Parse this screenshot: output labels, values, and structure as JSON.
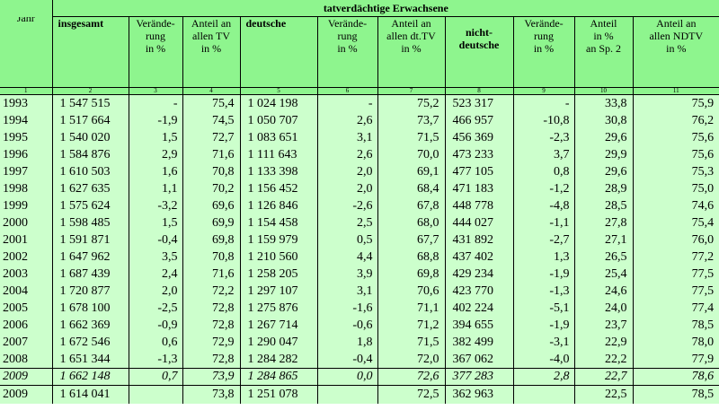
{
  "title": "tatverdächtige Erwachsene",
  "headers": {
    "jahr": "Jahr",
    "insgesamt": "insgesamt",
    "veraenderung_a": [
      "Verände-",
      "rung",
      "in %"
    ],
    "anteil_tv": [
      "Anteil an",
      "allen TV",
      "in %"
    ],
    "deutsche": "deutsche",
    "veraenderung_b": [
      "Verände-",
      "rung",
      "in %"
    ],
    "anteil_dttv": [
      "Anteil an",
      "allen dt.TV",
      "in %"
    ],
    "nichtdeutsche": [
      "nicht-",
      "deutsche"
    ],
    "veraenderung_c": [
      "Verände-",
      "rung",
      "in %"
    ],
    "anteil_sp2": [
      "Anteil",
      "in %",
      "an Sp. 2"
    ],
    "anteil_ndtv": [
      "Anteil an",
      "allen NDTV",
      "in %"
    ]
  },
  "column_numbers": [
    "1",
    "2",
    "3",
    "4",
    "5",
    "6",
    "7",
    "8",
    "9",
    "10",
    "11"
  ],
  "rows": [
    [
      "1993",
      "1 547 515",
      "-",
      "75,4",
      "1 024 198",
      "-",
      "75,2",
      "523 317",
      "-",
      "33,8",
      "75,9"
    ],
    [
      "1994",
      "1 517 664",
      "-1,9",
      "74,5",
      "1 050 707",
      "2,6",
      "73,7",
      "466 957",
      "-10,8",
      "30,8",
      "76,2"
    ],
    [
      "1995",
      "1 540 020",
      "1,5",
      "72,7",
      "1 083 651",
      "3,1",
      "71,5",
      "456 369",
      "-2,3",
      "29,6",
      "75,6"
    ],
    [
      "1996",
      "1 584 876",
      "2,9",
      "71,6",
      "1 111 643",
      "2,6",
      "70,0",
      "473 233",
      "3,7",
      "29,9",
      "75,6"
    ],
    [
      "1997",
      "1 610 503",
      "1,6",
      "70,8",
      "1 133 398",
      "2,0",
      "69,1",
      "477 105",
      "0,8",
      "29,6",
      "75,3"
    ],
    [
      "1998",
      "1 627 635",
      "1,1",
      "70,2",
      "1 156 452",
      "2,0",
      "68,4",
      "471 183",
      "-1,2",
      "28,9",
      "75,0"
    ],
    [
      "1999",
      "1 575 624",
      "-3,2",
      "69,6",
      "1 126 846",
      "-2,6",
      "67,8",
      "448 778",
      "-4,8",
      "28,5",
      "74,6"
    ],
    [
      "2000",
      "1 598 485",
      "1,5",
      "69,9",
      "1 154 458",
      "2,5",
      "68,0",
      "444 027",
      "-1,1",
      "27,8",
      "75,4"
    ],
    [
      "2001",
      "1 591 871",
      "-0,4",
      "69,8",
      "1 159 979",
      "0,5",
      "67,7",
      "431 892",
      "-2,7",
      "27,1",
      "76,0"
    ],
    [
      "2002",
      "1 647 962",
      "3,5",
      "70,8",
      "1 210 560",
      "4,4",
      "68,8",
      "437 402",
      "1,3",
      "26,5",
      "77,2"
    ],
    [
      "2003",
      "1 687 439",
      "2,4",
      "71,6",
      "1 258 205",
      "3,9",
      "69,8",
      "429 234",
      "-1,9",
      "25,4",
      "77,5"
    ],
    [
      "2004",
      "1 720 877",
      "2,0",
      "72,2",
      "1 297 107",
      "3,1",
      "70,6",
      "423 770",
      "-1,3",
      "24,6",
      "77,5"
    ],
    [
      "2005",
      "1 678 100",
      "-2,5",
      "72,8",
      "1 275 876",
      "-1,6",
      "71,1",
      "402 224",
      "-5,1",
      "24,0",
      "77,4"
    ],
    [
      "2006",
      "1 662 369",
      "-0,9",
      "72,8",
      "1 267 714",
      "-0,6",
      "71,2",
      "394 655",
      "-1,9",
      "23,7",
      "78,5"
    ],
    [
      "2007",
      "1 672 546",
      "0,6",
      "72,9",
      "1 290 047",
      "1,8",
      "71,5",
      "382 499",
      "-3,1",
      "22,9",
      "78,0"
    ],
    [
      "2008",
      "1 651 344",
      "-1,3",
      "72,8",
      "1 284 282",
      "-0,4",
      "72,0",
      "367 062",
      "-4,0",
      "22,2",
      "77,9"
    ]
  ],
  "row_2009_italic": [
    "2009",
    "1 662 148",
    "0,7",
    "73,9",
    "1 284 865",
    "0,0",
    "72,6",
    "377 283",
    "2,8",
    "22,7",
    "78,6"
  ],
  "row_2009_final": [
    "2009",
    "1 614 041",
    "",
    "73,8",
    "1 251 078",
    "",
    "72,5",
    "362 963",
    "",
    "22,5",
    "78,5"
  ]
}
